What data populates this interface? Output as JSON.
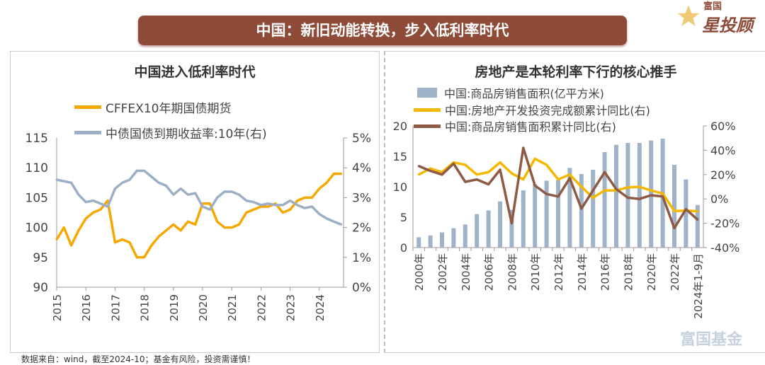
{
  "banner_title": "中国：新旧动能转换，步入低利率时代",
  "logo": {
    "line1": "富国",
    "line2": "星投顾"
  },
  "watermark": "富国基金",
  "footer": "数据来自：wind，截至2024-10；基金有风险，投资需谨慎！",
  "colors": {
    "orange": "#f5a800",
    "blue_gray": "#9dafc4",
    "brown": "#8e5a45",
    "bar": "#9fb3c8",
    "banner": "#8e4b37"
  },
  "chart_data": [
    {
      "type": "line",
      "title": "中国进入低利率时代",
      "legend_placement": "top-left",
      "grid": false,
      "x_ticks": [
        "2015",
        "2016",
        "2017",
        "2018",
        "2019",
        "2020",
        "2021",
        "2022",
        "2023",
        "2024"
      ],
      "y_left": {
        "lim": [
          90,
          115
        ],
        "ticks": [
          "90",
          "95",
          "100",
          "105",
          "110",
          "115"
        ]
      },
      "y_right": {
        "lim": [
          0,
          5
        ],
        "ticks": [
          "0%",
          "1%",
          "2%",
          "3%",
          "4%",
          "5%"
        ]
      },
      "x": [
        2015,
        2015.25,
        2015.5,
        2015.75,
        2016,
        2016.25,
        2016.5,
        2016.75,
        2017,
        2017.25,
        2017.5,
        2017.75,
        2018,
        2018.25,
        2018.5,
        2018.75,
        2019,
        2019.25,
        2019.5,
        2019.75,
        2020,
        2020.25,
        2020.5,
        2020.75,
        2021,
        2021.25,
        2021.5,
        2021.75,
        2022,
        2022.25,
        2022.5,
        2022.75,
        2023,
        2023.25,
        2023.5,
        2023.75,
        2024,
        2024.25,
        2024.5,
        2024.75
      ],
      "series": [
        {
          "name": "CFFEX10年期国债期货",
          "axis": "left",
          "color": "#f5a800",
          "values": [
            98,
            100,
            97,
            99.5,
            101.5,
            102.5,
            103,
            104.5,
            97.5,
            98,
            97.5,
            95,
            95,
            97,
            98.5,
            99.5,
            100.5,
            99.5,
            101,
            100.5,
            104,
            104,
            101,
            100,
            100,
            100.5,
            102.5,
            103,
            103.5,
            103.5,
            104,
            102.5,
            103,
            104.5,
            105,
            105,
            106.5,
            107.5,
            109,
            109
          ]
        },
        {
          "name": "中债国债到期收益率:10年(右)",
          "axis": "right",
          "color": "#9dafc4",
          "values": [
            3.6,
            3.55,
            3.5,
            3.1,
            2.85,
            2.9,
            2.8,
            2.7,
            3.3,
            3.5,
            3.6,
            3.9,
            3.9,
            3.7,
            3.5,
            3.4,
            3.1,
            3.3,
            3.1,
            3.15,
            2.7,
            2.6,
            3.0,
            3.2,
            3.2,
            3.1,
            2.9,
            2.85,
            2.75,
            2.8,
            2.75,
            2.75,
            2.9,
            2.75,
            2.65,
            2.7,
            2.45,
            2.3,
            2.2,
            2.1
          ]
        }
      ]
    },
    {
      "type": "bar+line",
      "title": "房地产是本轮利率下行的核心推手",
      "legend_placement": "top",
      "grid": false,
      "categories": [
        "2000年",
        "2001年",
        "2002年",
        "2003年",
        "2004年",
        "2005年",
        "2006年",
        "2007年",
        "2008年",
        "2009年",
        "2010年",
        "2011年",
        "2012年",
        "2013年",
        "2014年",
        "2015年",
        "2016年",
        "2017年",
        "2018年",
        "2019年",
        "2020年",
        "2021年",
        "2022年",
        "2023年",
        "2024年1-9月"
      ],
      "x_tick_labels": [
        "2000年",
        "2002年",
        "2004年",
        "2006年",
        "2008年",
        "2010年",
        "2012年",
        "2014年",
        "2016年",
        "2018年",
        "2020年",
        "2022年",
        "2024年1-9月"
      ],
      "y_left": {
        "lim": [
          0,
          20
        ],
        "ticks": [
          "0",
          "5",
          "10",
          "15",
          "20"
        ]
      },
      "y_right": {
        "lim": [
          -40,
          60
        ],
        "ticks": [
          "-40%",
          "-20%",
          "0%",
          "20%",
          "40%",
          "60%"
        ]
      },
      "series": [
        {
          "name": "中国:商品房销售面积(亿平方米)",
          "kind": "bar",
          "axis": "left",
          "color": "#9fb3c8",
          "values": [
            1.7,
            2.0,
            2.5,
            3.2,
            3.8,
            5.5,
            6.1,
            7.6,
            6.2,
            9.4,
            10.4,
            11.0,
            11.1,
            13.1,
            12.1,
            12.8,
            15.7,
            16.9,
            17.2,
            17.2,
            17.6,
            17.9,
            13.6,
            11.2,
            7.0
          ]
        },
        {
          "name": "中国:房地产开发投资完成额累计同比(右)",
          "kind": "line",
          "axis": "right",
          "color": "#f5b800",
          "values": [
            20,
            25,
            22,
            30,
            28,
            20,
            22,
            30,
            21,
            16,
            33,
            28,
            16,
            20,
            10,
            1,
            7,
            7,
            9.5,
            9.9,
            7,
            4.4,
            -10,
            -9.6,
            -10.1
          ]
        },
        {
          "name": "中国:商品房销售面积累计同比(右)",
          "kind": "line",
          "axis": "right",
          "color": "#8e5a45",
          "values": [
            27,
            23,
            20,
            29,
            14,
            16,
            12,
            24,
            -20,
            42,
            11,
            4,
            2,
            17,
            -8,
            7,
            22,
            8,
            1,
            0,
            3,
            2,
            -24,
            -8.5,
            -17
          ]
        }
      ]
    }
  ]
}
